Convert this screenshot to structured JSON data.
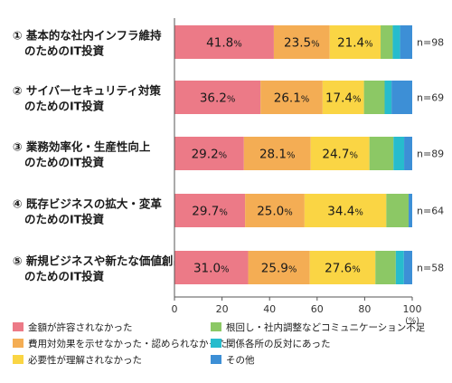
{
  "chart_data": {
    "type": "bar",
    "orientation": "horizontal",
    "stacked": true,
    "categories": [
      [
        "①",
        "基本的な社内インフラ維持",
        "のためのIT投資"
      ],
      [
        "②",
        "サイバーセキュリティ対策",
        "のためのIT投資"
      ],
      [
        "③",
        "業務効率化・生産性向上",
        "のためのIT投資"
      ],
      [
        "④",
        "既存ビジネスの拡大・変革",
        "のためのIT投資"
      ],
      [
        "⑤",
        "新規ビジネスや新たな価値創出",
        "のためのIT投資"
      ]
    ],
    "n_labels": [
      "n=98",
      "n=69",
      "n=89",
      "n=64",
      "n=58"
    ],
    "series": [
      {
        "name": "金額が許容されなかった",
        "color": "#ec7a87",
        "values": [
          41.8,
          36.2,
          29.2,
          29.7,
          31.0
        ],
        "labels": [
          "41.8",
          "36.2",
          "29.2",
          "29.7",
          "31.0"
        ]
      },
      {
        "name": "費用対効果を示せなかった・認められなかった",
        "color": "#f4ad54",
        "values": [
          23.5,
          26.1,
          28.1,
          25.0,
          25.9
        ],
        "labels": [
          "23.5",
          "26.1",
          "28.1",
          "25.0",
          "25.9"
        ]
      },
      {
        "name": "必要性が理解されなかった",
        "color": "#fad544",
        "values": [
          21.4,
          17.4,
          24.7,
          34.4,
          27.6
        ],
        "labels": [
          "21.4",
          "17.4",
          "24.7",
          "34.4",
          "27.6"
        ]
      },
      {
        "name": "根回し・社内調整などコミュニケーション不足",
        "color": "#8cc865",
        "values": [
          5.1,
          8.7,
          10.1,
          9.4,
          8.6
        ],
        "labels": null
      },
      {
        "name": "関係各所の反対にあった",
        "color": "#27bccd",
        "values": [
          3.1,
          2.9,
          4.5,
          0.0,
          3.4
        ],
        "labels": null
      },
      {
        "name": "その他",
        "color": "#3d8fd6",
        "values": [
          5.1,
          8.7,
          3.4,
          1.5,
          3.5
        ],
        "labels": null
      }
    ],
    "value_unit": "%",
    "xlim": [
      0,
      100
    ],
    "xticks": [
      "0",
      "20",
      "40",
      "60",
      "80",
      "100"
    ],
    "xunit": "(%)",
    "legend_position": "bottom",
    "grid": false
  }
}
